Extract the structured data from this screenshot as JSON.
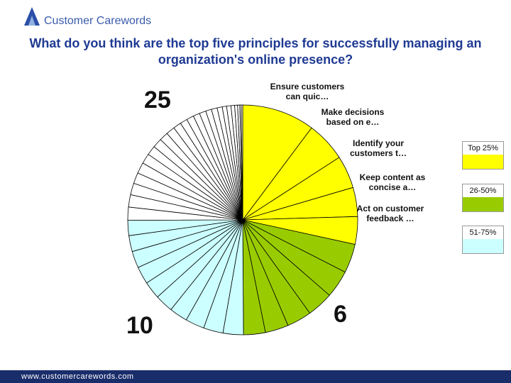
{
  "header": {
    "logo_text": "Customer Carewords"
  },
  "footer": {
    "url": "www.customercarewords.com"
  },
  "chart_data": {
    "type": "pie",
    "title": "What do you think are the top five principles for successfully managing an organization's online presence?",
    "categories": [
      "Ensure customers can quic…",
      "Make decisions based on e…",
      "Identify your customers t…",
      "Keep content as concise a…",
      "Act on customer feedback …",
      null,
      null,
      null,
      null,
      null,
      null,
      null,
      null,
      null,
      null,
      null,
      null,
      null,
      null,
      null,
      null,
      null,
      null,
      null,
      null,
      null,
      null,
      null,
      null,
      null,
      null,
      null,
      null,
      null,
      null,
      null,
      null,
      null,
      null,
      null,
      null,
      null,
      null,
      null,
      null,
      null
    ],
    "values": [
      10,
      5.5,
      4.5,
      4,
      3.8,
      4,
      3.8,
      3.6,
      3.4,
      3.2,
      3,
      2.8,
      2.7,
      2.6,
      2.5,
      2.5,
      2.4,
      2.4,
      2.3,
      2.2,
      2.1,
      1.8,
      1.7,
      1.6,
      1.5,
      1.5,
      1.4,
      1.3,
      1.3,
      1.2,
      1.2,
      1.1,
      1.0,
      1.0,
      0.9,
      0.9,
      0.8,
      0.8,
      0.7,
      0.6,
      0.6,
      0.5,
      0.4,
      0.3,
      0.2,
      0.2
    ],
    "colors": [
      "#ffff00",
      "#ffff00",
      "#ffff00",
      "#ffff00",
      "#ffff00",
      "#99cc00",
      "#99cc00",
      "#99cc00",
      "#99cc00",
      "#99cc00",
      "#99cc00",
      "#ccffff",
      "#ccffff",
      "#ccffff",
      "#ccffff",
      "#ccffff",
      "#ccffff",
      "#ccffff",
      "#ccffff",
      "#ccffff",
      "#ccffff",
      "#ffffff",
      "#ffffff",
      "#ffffff",
      "#ffffff",
      "#ffffff",
      "#ffffff",
      "#ffffff",
      "#ffffff",
      "#ffffff",
      "#ffffff",
      "#ffffff",
      "#ffffff",
      "#ffffff",
      "#ffffff",
      "#ffffff",
      "#ffffff",
      "#ffffff",
      "#ffffff",
      "#ffffff",
      "#ffffff",
      "#ffffff",
      "#ffffff",
      "#ffffff",
      "#ffffff",
      "#ffffff"
    ],
    "annotations": [
      "25",
      "10",
      "6"
    ],
    "legend": [
      {
        "label": "Top 25%",
        "color": "#ffff00"
      },
      {
        "label": "26-50%",
        "color": "#99cc00"
      },
      {
        "label": "51-75%",
        "color": "#ccffff"
      }
    ]
  }
}
